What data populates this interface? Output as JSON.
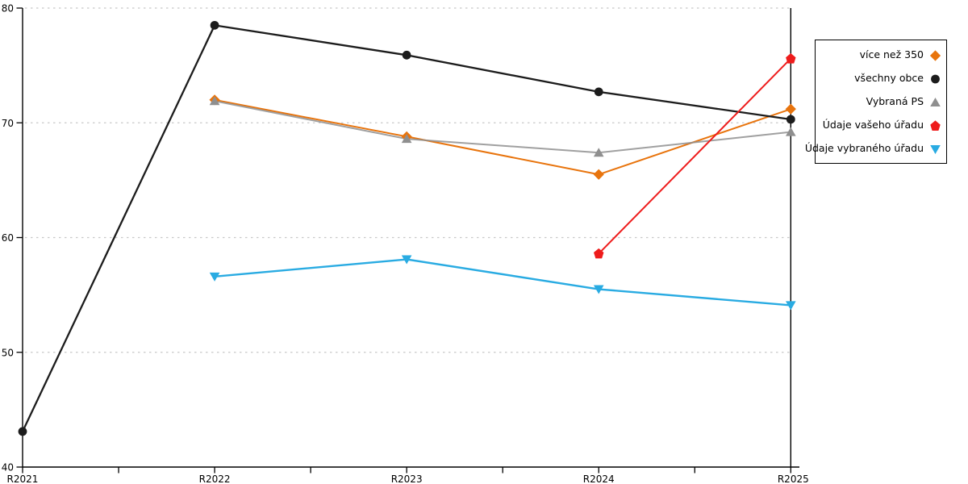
{
  "chart_data": {
    "type": "line",
    "title": "",
    "xlabel": "",
    "ylabel": "",
    "categories": [
      "R2021",
      "R2022",
      "R2023",
      "R2024",
      "R2025"
    ],
    "ylim": [
      40,
      80
    ],
    "yticks": [
      40,
      50,
      60,
      70,
      80
    ],
    "grid": "horizontal-dashed",
    "legend_position": "right",
    "series": [
      {
        "name": "více než 350",
        "marker": "diamond",
        "color": "#e8740d",
        "values": [
          null,
          72.0,
          68.8,
          65.5,
          71.2
        ]
      },
      {
        "name": "všechny obce",
        "marker": "circle",
        "color": "#1c1c1c",
        "values": [
          43.1,
          78.5,
          75.9,
          72.7,
          70.3
        ]
      },
      {
        "name": "Vybraná PS",
        "marker": "triangle-up",
        "color": "#8f8f8f",
        "values": [
          null,
          71.9,
          68.6,
          67.4,
          69.2
        ]
      },
      {
        "name": "Údaje vašeho úřadu",
        "marker": "pentagon",
        "color": "#ee1c1c",
        "values": [
          null,
          null,
          null,
          58.6,
          75.6
        ]
      },
      {
        "name": "Údaje vybraného úřadu",
        "marker": "triangle-down",
        "color": "#29abe2",
        "values": [
          null,
          56.6,
          58.1,
          55.5,
          54.1
        ]
      }
    ]
  }
}
